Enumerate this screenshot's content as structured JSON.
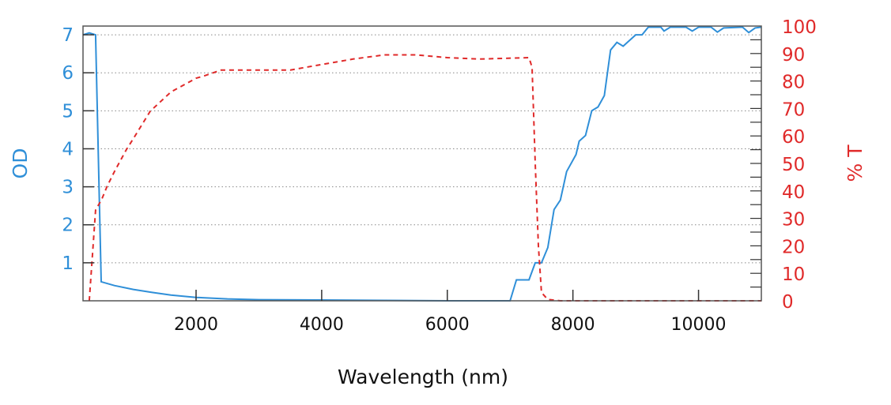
{
  "chart_data": {
    "type": "line",
    "title": "",
    "xlabel": "Wavelength (nm)",
    "ylabel": "OD",
    "y2label": "% T",
    "xlim": [
      200,
      11000
    ],
    "ylim": [
      0,
      7.23
    ],
    "y2lim": [
      0,
      100
    ],
    "x_ticks": [
      2000,
      4000,
      6000,
      8000,
      10000
    ],
    "y_ticks": [
      1,
      2,
      3,
      4,
      5,
      6,
      7
    ],
    "y2_ticks": [
      0,
      10,
      20,
      30,
      40,
      50,
      60,
      70,
      80,
      90,
      100
    ],
    "grid": "horizontal dotted",
    "colors": {
      "od": "#2f8fd8",
      "t": "#e02a2a"
    },
    "series": [
      {
        "name": "OD",
        "axis": "left",
        "style": "solid",
        "points": [
          [
            200,
            7.0
          ],
          [
            300,
            7.05
          ],
          [
            400,
            7.0
          ],
          [
            490,
            0.5
          ],
          [
            700,
            0.4
          ],
          [
            1000,
            0.3
          ],
          [
            1300,
            0.22
          ],
          [
            1600,
            0.15
          ],
          [
            2000,
            0.09
          ],
          [
            2500,
            0.05
          ],
          [
            3000,
            0.03
          ],
          [
            4000,
            0.02
          ],
          [
            5000,
            0.01
          ],
          [
            6000,
            0.0
          ],
          [
            7000,
            0.0
          ],
          [
            7100,
            0.55
          ],
          [
            7300,
            0.55
          ],
          [
            7400,
            1.0
          ],
          [
            7500,
            1.0
          ],
          [
            7600,
            1.4
          ],
          [
            7700,
            2.4
          ],
          [
            7800,
            2.65
          ],
          [
            7900,
            3.4
          ],
          [
            8050,
            3.85
          ],
          [
            8100,
            4.2
          ],
          [
            8200,
            4.35
          ],
          [
            8300,
            5.0
          ],
          [
            8400,
            5.1
          ],
          [
            8500,
            5.4
          ],
          [
            8600,
            6.6
          ],
          [
            8700,
            6.8
          ],
          [
            8800,
            6.7
          ],
          [
            9000,
            7.0
          ],
          [
            9100,
            7.0
          ],
          [
            9200,
            7.2
          ],
          [
            9400,
            7.2
          ],
          [
            9450,
            7.1
          ],
          [
            9550,
            7.2
          ],
          [
            9800,
            7.2
          ],
          [
            9900,
            7.1
          ],
          [
            10000,
            7.2
          ],
          [
            10200,
            7.2
          ],
          [
            10300,
            7.07
          ],
          [
            10400,
            7.18
          ],
          [
            10700,
            7.2
          ],
          [
            10800,
            7.06
          ],
          [
            10900,
            7.18
          ],
          [
            11000,
            7.2
          ]
        ]
      },
      {
        "name": "% T",
        "axis": "right",
        "style": "dashed",
        "points": [
          [
            300,
            0
          ],
          [
            400,
            33
          ],
          [
            500,
            37
          ],
          [
            580,
            41.5
          ],
          [
            700,
            47
          ],
          [
            890,
            55
          ],
          [
            1000,
            59
          ],
          [
            1270,
            69
          ],
          [
            1600,
            76
          ],
          [
            2000,
            81
          ],
          [
            2150,
            82
          ],
          [
            2400,
            84
          ],
          [
            3000,
            84
          ],
          [
            3500,
            84
          ],
          [
            4000,
            86
          ],
          [
            4500,
            88
          ],
          [
            5000,
            89.5
          ],
          [
            5500,
            89.5
          ],
          [
            6000,
            88.5
          ],
          [
            6500,
            88
          ],
          [
            7300,
            88.5
          ],
          [
            7350,
            85
          ],
          [
            7400,
            50
          ],
          [
            7450,
            20
          ],
          [
            7500,
            3
          ],
          [
            7600,
            0.5
          ],
          [
            7800,
            0
          ],
          [
            11000,
            0
          ]
        ]
      }
    ]
  }
}
